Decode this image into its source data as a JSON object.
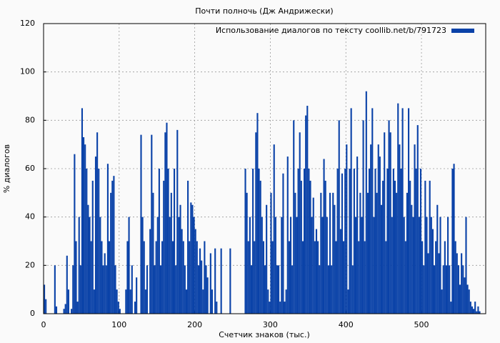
{
  "chart_data": {
    "type": "bar",
    "title": "Почти полночь (Дж Андрижески)",
    "x_label": "Счетчик знаков (тыс.)",
    "y_label": "% диалогов",
    "series": [
      {
        "name": "Использование диалогов по тексту coollib.net/b/791723",
        "color": "#0a42a8",
        "x": [
          0,
          2,
          4,
          6,
          8,
          10,
          12,
          14,
          16,
          18,
          20,
          22,
          24,
          26,
          28,
          30,
          32,
          34,
          36,
          38,
          40,
          42,
          44,
          46,
          48,
          50,
          52,
          54,
          56,
          58,
          60,
          62,
          64,
          66,
          68,
          70,
          72,
          74,
          76,
          78,
          80,
          82,
          84,
          86,
          88,
          90,
          92,
          94,
          96,
          98,
          100,
          102,
          104,
          106,
          108,
          110,
          112,
          114,
          116,
          118,
          120,
          122,
          124,
          126,
          128,
          130,
          132,
          134,
          136,
          138,
          140,
          142,
          144,
          146,
          148,
          150,
          152,
          154,
          156,
          158,
          160,
          162,
          164,
          166,
          168,
          170,
          172,
          174,
          176,
          178,
          180,
          182,
          184,
          186,
          188,
          190,
          192,
          194,
          196,
          198,
          200,
          202,
          204,
          206,
          208,
          210,
          212,
          214,
          216,
          218,
          220,
          222,
          224,
          226,
          228,
          230,
          232,
          234,
          236,
          238,
          240,
          242,
          244,
          246,
          248,
          250,
          252,
          254,
          256,
          258,
          260,
          262,
          264,
          266,
          268,
          270,
          272,
          274,
          276,
          278,
          280,
          282,
          284,
          286,
          288,
          290,
          292,
          294,
          296,
          298,
          300,
          302,
          304,
          306,
          308,
          310,
          312,
          314,
          316,
          318,
          320,
          322,
          324,
          326,
          328,
          330,
          332,
          334,
          336,
          338,
          340,
          342,
          344,
          346,
          348,
          350,
          352,
          354,
          356,
          358,
          360,
          362,
          364,
          366,
          368,
          370,
          372,
          374,
          376,
          378,
          380,
          382,
          384,
          386,
          388,
          390,
          392,
          394,
          396,
          398,
          400,
          402,
          404,
          406,
          408,
          410,
          412,
          414,
          416,
          418,
          420,
          422,
          424,
          426,
          428,
          430,
          432,
          434,
          436,
          438,
          440,
          442,
          444,
          446,
          448,
          450,
          452,
          454,
          456,
          458,
          460,
          462,
          464,
          466,
          468,
          470,
          472,
          474,
          476,
          478,
          480,
          482,
          484,
          486,
          488,
          490,
          492,
          494,
          496,
          498,
          500,
          502,
          504,
          506,
          508,
          510,
          512,
          514,
          516,
          518,
          520,
          522,
          524,
          526,
          528,
          530,
          532,
          534,
          536,
          538,
          540,
          542,
          544,
          546,
          548,
          550,
          552,
          554,
          556,
          558,
          560,
          562,
          564,
          566,
          568,
          570,
          572,
          574,
          576,
          578
        ],
        "values": [
          12,
          6,
          0,
          0,
          0,
          0,
          0,
          20,
          3,
          0,
          0,
          0,
          0,
          2,
          4,
          24,
          10,
          0,
          2,
          20,
          66,
          30,
          5,
          40,
          20,
          85,
          73,
          70,
          60,
          45,
          40,
          30,
          55,
          10,
          65,
          75,
          60,
          40,
          30,
          20,
          25,
          20,
          62,
          30,
          50,
          55,
          57,
          20,
          10,
          5,
          2,
          0,
          0,
          0,
          10,
          30,
          40,
          10,
          20,
          0,
          5,
          15,
          0,
          0,
          74,
          40,
          30,
          10,
          20,
          0,
          35,
          74,
          50,
          20,
          30,
          40,
          60,
          20,
          30,
          55,
          75,
          79,
          60,
          40,
          50,
          30,
          60,
          20,
          76,
          40,
          45,
          35,
          30,
          20,
          10,
          55,
          30,
          46,
          45,
          40,
          35,
          30,
          20,
          27,
          22,
          10,
          30,
          20,
          15,
          0,
          25,
          10,
          0,
          27,
          5,
          0,
          0,
          27,
          0,
          0,
          0,
          0,
          0,
          27,
          0,
          0,
          0,
          0,
          0,
          0,
          0,
          0,
          0,
          60,
          50,
          30,
          40,
          20,
          60,
          30,
          75,
          83,
          60,
          55,
          40,
          30,
          20,
          45,
          10,
          5,
          50,
          30,
          70,
          40,
          20,
          20,
          5,
          40,
          58,
          5,
          10,
          65,
          30,
          40,
          20,
          80,
          50,
          40,
          60,
          75,
          55,
          30,
          60,
          82,
          86,
          60,
          55,
          40,
          48,
          30,
          35,
          30,
          20,
          50,
          40,
          64,
          55,
          40,
          20,
          50,
          20,
          50,
          45,
          30,
          60,
          80,
          35,
          58,
          30,
          60,
          70,
          10,
          60,
          85,
          20,
          60,
          40,
          65,
          30,
          50,
          40,
          80,
          30,
          92,
          50,
          60,
          70,
          85,
          40,
          60,
          50,
          70,
          65,
          45,
          55,
          75,
          30,
          60,
          80,
          75,
          40,
          60,
          55,
          50,
          87,
          70,
          60,
          85,
          40,
          30,
          50,
          85,
          55,
          45,
          40,
          70,
          60,
          78,
          40,
          60,
          30,
          20,
          55,
          40,
          25,
          55,
          40,
          35,
          20,
          30,
          45,
          25,
          40,
          10,
          20,
          30,
          20,
          40,
          20,
          5,
          60,
          62,
          30,
          25,
          20,
          12,
          25,
          20,
          15,
          40,
          12,
          10,
          5,
          3,
          2,
          5,
          1,
          3,
          1,
          0
        ]
      }
    ],
    "xlim": [
      0,
      585
    ],
    "xticks": [
      0,
      100,
      200,
      300,
      400,
      500
    ],
    "ylim": [
      0,
      120
    ],
    "yticks": [
      0,
      20,
      40,
      60,
      80,
      100,
      120
    ],
    "grid": true,
    "legend": "upper right"
  }
}
